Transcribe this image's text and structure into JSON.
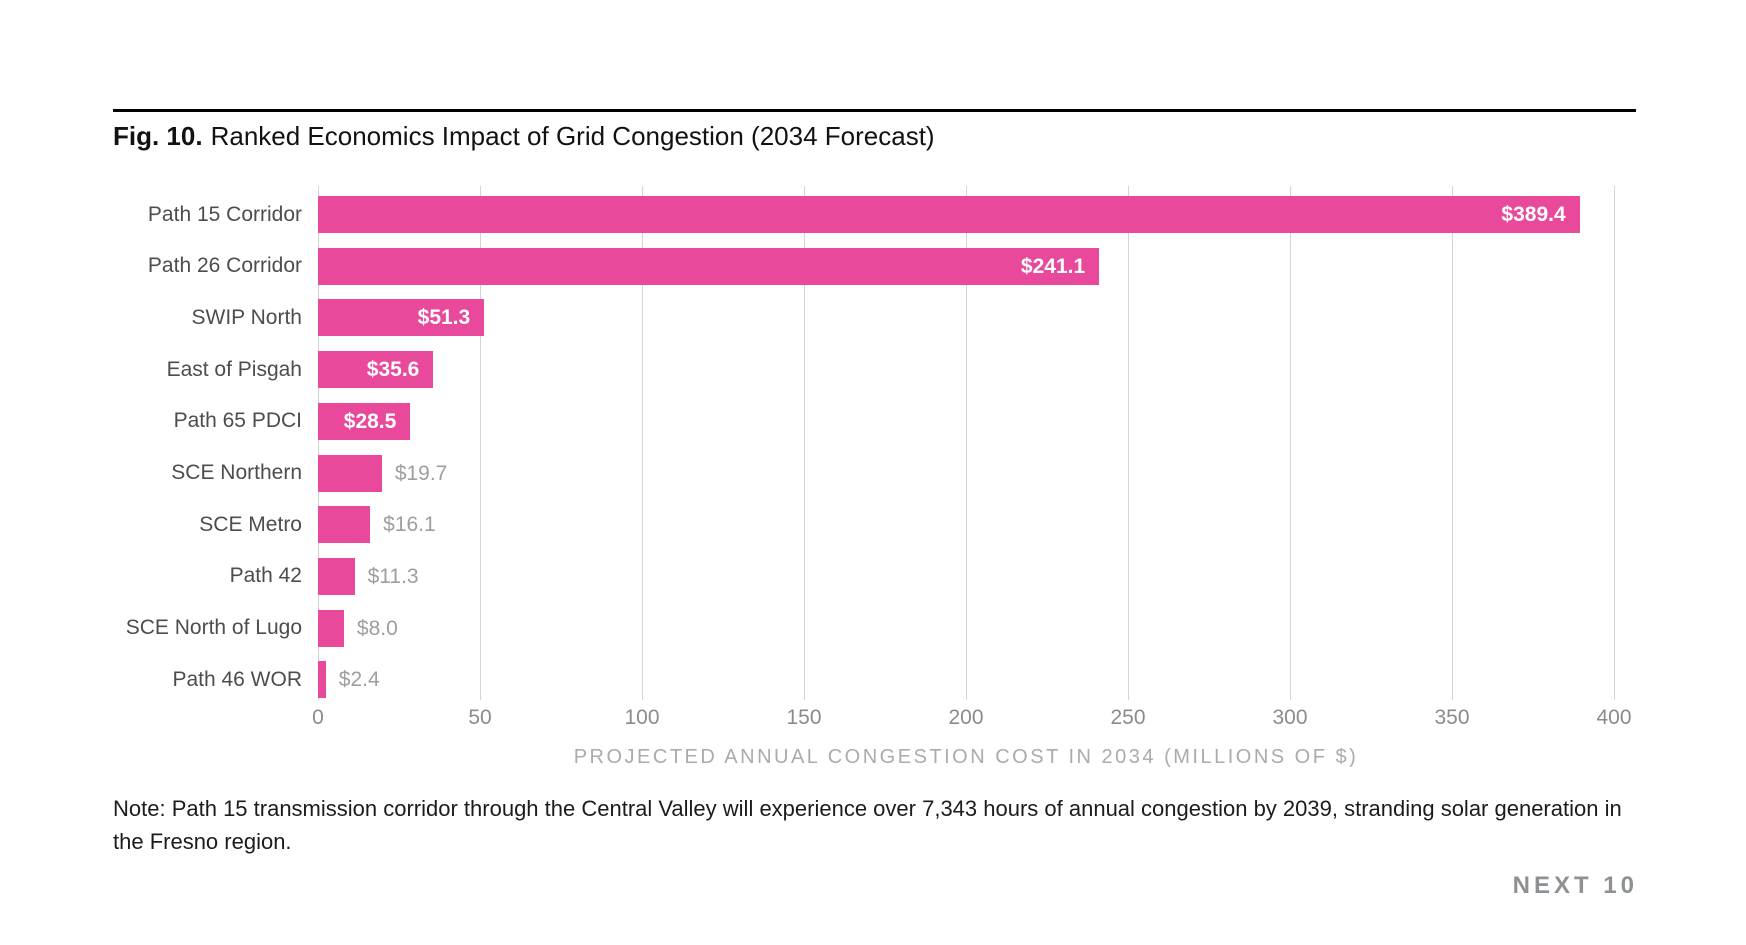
{
  "page": {
    "title_prefix": "Fig. 10.",
    "title_suffix": "Ranked Economics Impact of Grid Congestion (2034 Forecast)",
    "note": "Note: Path 15 transmission corridor through the Central Valley will experience over 7,343 hours of annual congestion by 2039, stranding solar generation in the Fresno region.",
    "brand": "NEXT 10"
  },
  "chart_data": {
    "type": "bar",
    "orientation": "horizontal",
    "title": "Fig. 10. Ranked Economics Impact of Grid Congestion (2034 Forecast)",
    "categories": [
      "Path 15 Corridor",
      "Path 26 Corridor",
      "SWIP North",
      "East of Pisgah",
      "Path 65 PDCI",
      "SCE Northern",
      "SCE Metro",
      "Path 42",
      "SCE North of Lugo",
      "Path 46 WOR"
    ],
    "values": [
      389.4,
      241.1,
      51.3,
      35.6,
      28.5,
      19.7,
      16.1,
      11.3,
      8.0,
      2.4
    ],
    "value_labels": [
      "$389.4",
      "$241.1",
      "$51.3",
      "$35.6",
      "$28.5",
      "$19.7",
      "$16.1",
      "$11.3",
      "$8.0",
      "$2.4"
    ],
    "xlabel": "PROJECTED ANNUAL CONGESTION COST IN 2034 (MILLIONS OF $)",
    "ylabel": "",
    "xlim": [
      0,
      400
    ],
    "xticks": [
      0,
      50,
      100,
      150,
      200,
      250,
      300,
      350,
      400
    ],
    "grid": true,
    "legend": false,
    "bar_color": "#E9499B"
  },
  "colors": {
    "bar": "#E9499B",
    "inside_label": "#ffffff",
    "outside_label": "#9e9e9e",
    "category_label": "#4d4d4d",
    "tick_label": "#8b8b8b",
    "axis_title": "#ababab",
    "gridline": "#d4d4d4",
    "rule": "#000000",
    "brand": "#8e9194"
  }
}
